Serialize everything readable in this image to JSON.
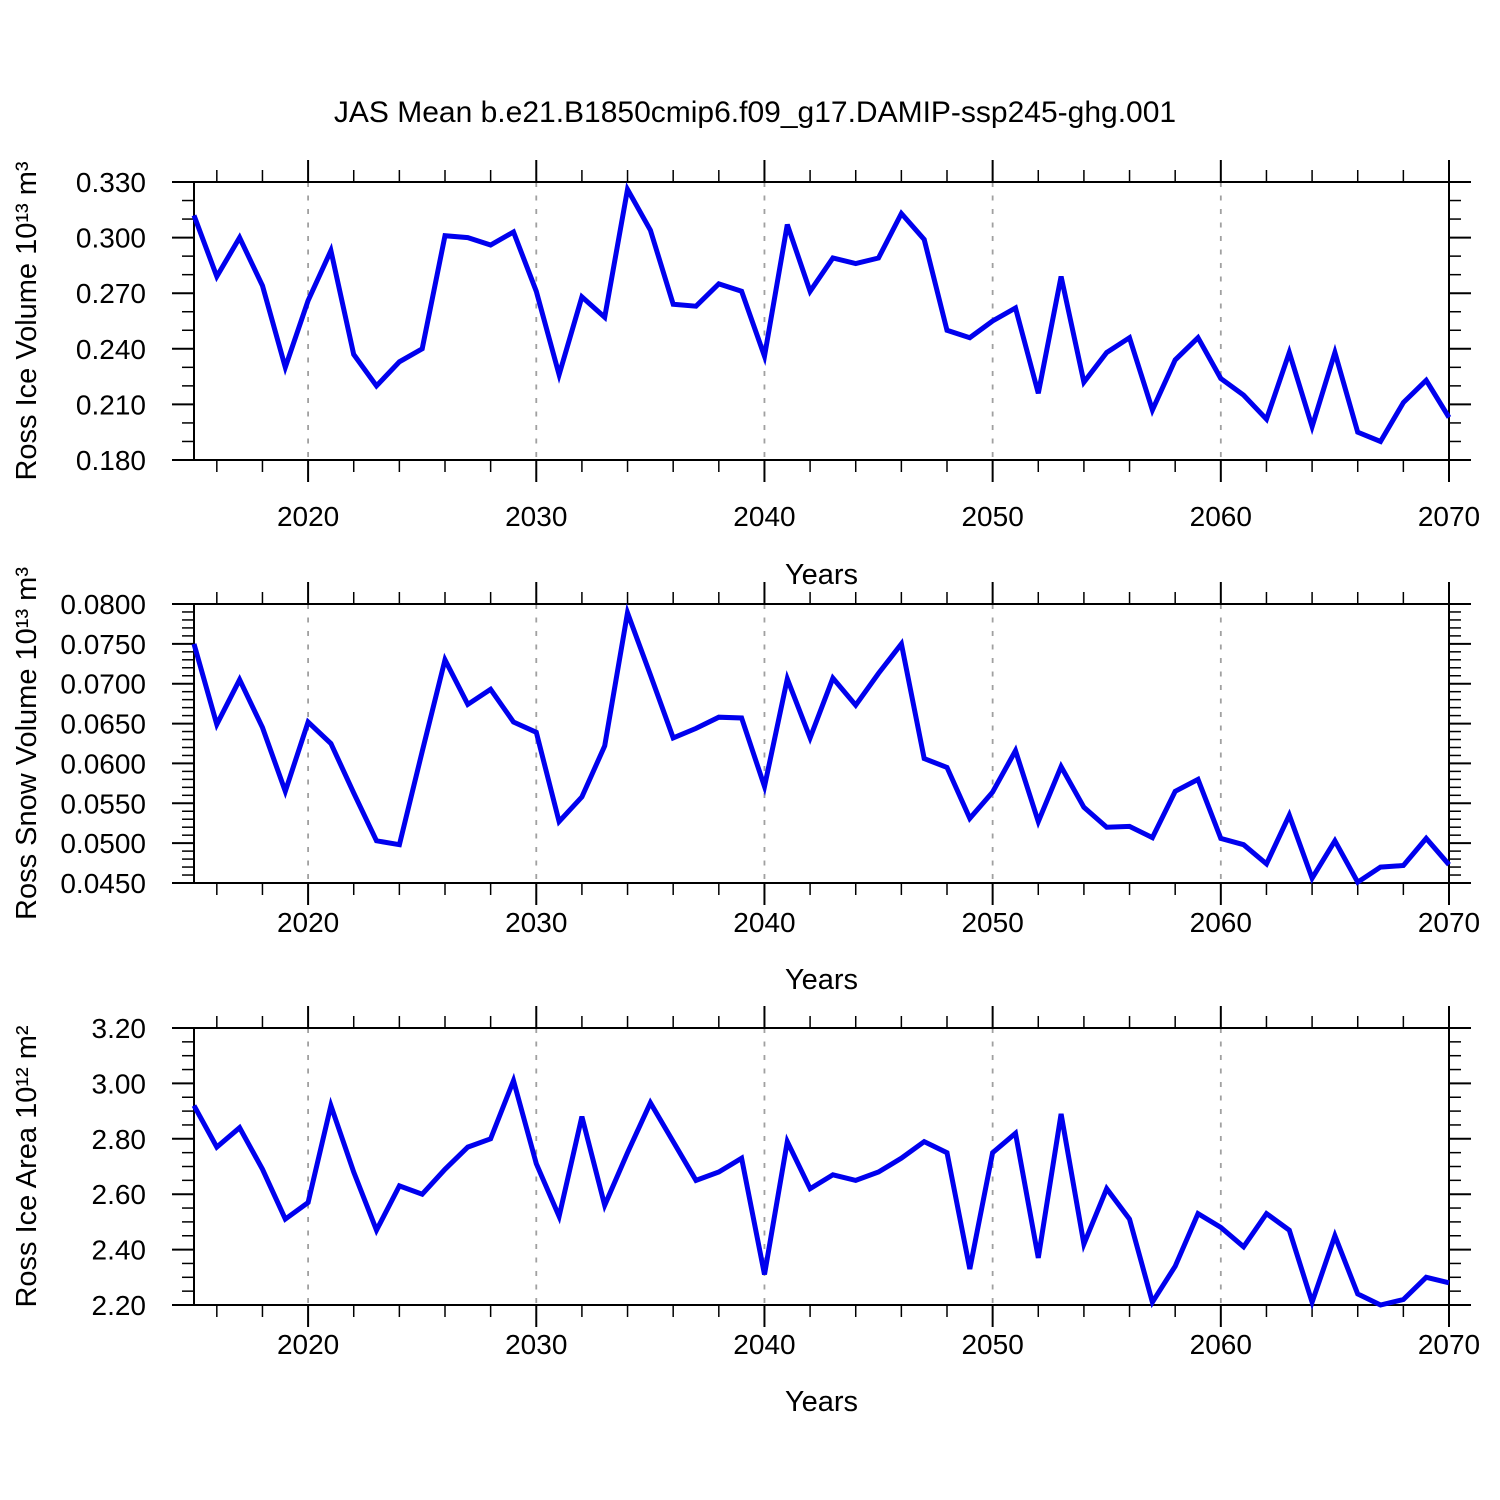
{
  "title": "JAS Mean b.e21.B1850cmip6.f09_g17.DAMIP-ssp245-ghg.001",
  "line_color": "#0000ee",
  "gridline_color": "#a0a0a0",
  "frame_color": "#000000",
  "panels": [
    {
      "y_axis_title": "Ross Ice Volume 10¹³ m³",
      "x_axis_title": "Years"
    },
    {
      "y_axis_title": "Ross Snow Volume 10¹³ m³",
      "x_axis_title": "Years"
    },
    {
      "y_axis_title": "Ross Ice Area 10¹² m²",
      "x_axis_title": "Years"
    }
  ],
  "chart_data": [
    {
      "type": "line",
      "title": "JAS Mean b.e21.B1850cmip6.f09_g17.DAMIP-ssp245-ghg.001",
      "ylabel": "Ross Ice Volume 10^13 m^3",
      "xlabel": "Years",
      "xlim": [
        2015,
        2070
      ],
      "ylim": [
        0.18,
        0.33
      ],
      "x_major_ticks": [
        2020,
        2030,
        2040,
        2050,
        2060,
        2070
      ],
      "x_tick_labels": [
        "2020",
        "2030",
        "2040",
        "2050",
        "2060",
        "2070"
      ],
      "x_minor_step": 2,
      "x_gridlines": [
        2020,
        2030,
        2040,
        2050,
        2060
      ],
      "y_major_ticks": [
        0.33,
        0.3,
        0.27,
        0.24,
        0.21,
        0.18
      ],
      "y_tick_labels": [
        "0.330",
        "0.300",
        "0.270",
        "0.240",
        "0.210",
        "0.180"
      ],
      "y_minor_step": 0.01,
      "grid": "x-dashed",
      "legend": "none",
      "x": [
        2015,
        2016,
        2017,
        2018,
        2019,
        2020,
        2021,
        2022,
        2023,
        2024,
        2025,
        2026,
        2027,
        2028,
        2029,
        2030,
        2031,
        2032,
        2033,
        2034,
        2035,
        2036,
        2037,
        2038,
        2039,
        2040,
        2041,
        2042,
        2043,
        2044,
        2045,
        2046,
        2047,
        2048,
        2049,
        2050,
        2051,
        2052,
        2053,
        2054,
        2055,
        2056,
        2057,
        2058,
        2059,
        2060,
        2061,
        2062,
        2063,
        2064,
        2065,
        2066,
        2067,
        2068,
        2069,
        2070
      ],
      "values": [
        0.312,
        0.279,
        0.3,
        0.274,
        0.23,
        0.266,
        0.293,
        0.237,
        0.22,
        0.233,
        0.24,
        0.301,
        0.3,
        0.296,
        0.303,
        0.271,
        0.226,
        0.268,
        0.257,
        0.326,
        0.304,
        0.264,
        0.263,
        0.275,
        0.271,
        0.236,
        0.307,
        0.271,
        0.289,
        0.286,
        0.289,
        0.313,
        0.299,
        0.25,
        0.246,
        0.255,
        0.262,
        0.216,
        0.279,
        0.222,
        0.238,
        0.246,
        0.207,
        0.234,
        0.246,
        0.224,
        0.215,
        0.202,
        0.238,
        0.198,
        0.238,
        0.195,
        0.19,
        0.211,
        0.223,
        0.203
      ]
    },
    {
      "type": "line",
      "ylabel": "Ross Snow Volume 10^13 m^3",
      "xlabel": "Years",
      "xlim": [
        2015,
        2070
      ],
      "ylim": [
        0.045,
        0.08
      ],
      "x_major_ticks": [
        2020,
        2030,
        2040,
        2050,
        2060,
        2070
      ],
      "x_tick_labels": [
        "2020",
        "2030",
        "2040",
        "2050",
        "2060",
        "2070"
      ],
      "x_minor_step": 2,
      "x_gridlines": [
        2020,
        2030,
        2040,
        2050,
        2060
      ],
      "y_major_ticks": [
        0.08,
        0.075,
        0.07,
        0.065,
        0.06,
        0.055,
        0.05,
        0.045
      ],
      "y_tick_labels": [
        "0.0800",
        "0.0750",
        "0.0700",
        "0.0650",
        "0.0600",
        "0.0550",
        "0.0500",
        "0.0450"
      ],
      "y_minor_step": 0.001,
      "grid": "x-dashed",
      "legend": "none",
      "x": [
        2015,
        2016,
        2017,
        2018,
        2019,
        2020,
        2021,
        2022,
        2023,
        2024,
        2025,
        2026,
        2027,
        2028,
        2029,
        2030,
        2031,
        2032,
        2033,
        2034,
        2035,
        2036,
        2037,
        2038,
        2039,
        2040,
        2041,
        2042,
        2043,
        2044,
        2045,
        2046,
        2047,
        2048,
        2049,
        2050,
        2051,
        2052,
        2053,
        2054,
        2055,
        2056,
        2057,
        2058,
        2059,
        2060,
        2061,
        2062,
        2063,
        2064,
        2065,
        2066,
        2067,
        2068,
        2069,
        2070
      ],
      "values": [
        0.075,
        0.0649,
        0.0705,
        0.0645,
        0.0565,
        0.0652,
        0.0625,
        0.0563,
        0.0503,
        0.0498,
        0.0615,
        0.073,
        0.0674,
        0.0693,
        0.0652,
        0.0639,
        0.0527,
        0.0558,
        0.0622,
        0.0789,
        0.0711,
        0.0632,
        0.0644,
        0.0658,
        0.0657,
        0.0571,
        0.0706,
        0.0632,
        0.0707,
        0.0673,
        0.0713,
        0.075,
        0.0606,
        0.0595,
        0.0531,
        0.0564,
        0.0616,
        0.0527,
        0.0596,
        0.0545,
        0.052,
        0.0521,
        0.0507,
        0.0565,
        0.058,
        0.0506,
        0.0498,
        0.0474,
        0.0535,
        0.0456,
        0.0503,
        0.0451,
        0.047,
        0.0472,
        0.0506,
        0.0473
      ]
    },
    {
      "type": "line",
      "ylabel": "Ross Ice Area 10^12 m^2",
      "xlabel": "Years",
      "xlim": [
        2015,
        2070
      ],
      "ylim": [
        2.2,
        3.2
      ],
      "x_major_ticks": [
        2020,
        2030,
        2040,
        2050,
        2060,
        2070
      ],
      "x_tick_labels": [
        "2020",
        "2030",
        "2040",
        "2050",
        "2060",
        "2070"
      ],
      "x_minor_step": 2,
      "x_gridlines": [
        2020,
        2030,
        2040,
        2050,
        2060
      ],
      "y_major_ticks": [
        3.2,
        3.0,
        2.8,
        2.6,
        2.4,
        2.2
      ],
      "y_tick_labels": [
        "3.20",
        "3.00",
        "2.80",
        "2.60",
        "2.40",
        "2.20"
      ],
      "y_minor_step": 0.05,
      "grid": "x-dashed",
      "legend": "none",
      "x": [
        2015,
        2016,
        2017,
        2018,
        2019,
        2020,
        2021,
        2022,
        2023,
        2024,
        2025,
        2026,
        2027,
        2028,
        2029,
        2030,
        2031,
        2032,
        2033,
        2034,
        2035,
        2036,
        2037,
        2038,
        2039,
        2040,
        2041,
        2042,
        2043,
        2044,
        2045,
        2046,
        2047,
        2048,
        2049,
        2050,
        2051,
        2052,
        2053,
        2054,
        2055,
        2056,
        2057,
        2058,
        2059,
        2060,
        2061,
        2062,
        2063,
        2064,
        2065,
        2066,
        2067,
        2068,
        2069,
        2070
      ],
      "values": [
        2.92,
        2.77,
        2.84,
        2.69,
        2.51,
        2.57,
        2.92,
        2.68,
        2.47,
        2.63,
        2.6,
        2.69,
        2.77,
        2.8,
        3.01,
        2.71,
        2.52,
        2.88,
        2.56,
        2.75,
        2.93,
        2.79,
        2.65,
        2.68,
        2.73,
        2.31,
        2.79,
        2.62,
        2.67,
        2.65,
        2.68,
        2.73,
        2.79,
        2.75,
        2.33,
        2.75,
        2.82,
        2.37,
        2.89,
        2.42,
        2.62,
        2.51,
        2.21,
        2.34,
        2.53,
        2.48,
        2.41,
        2.53,
        2.47,
        2.21,
        2.45,
        2.24,
        2.2,
        2.22,
        2.3,
        2.28
      ]
    }
  ]
}
